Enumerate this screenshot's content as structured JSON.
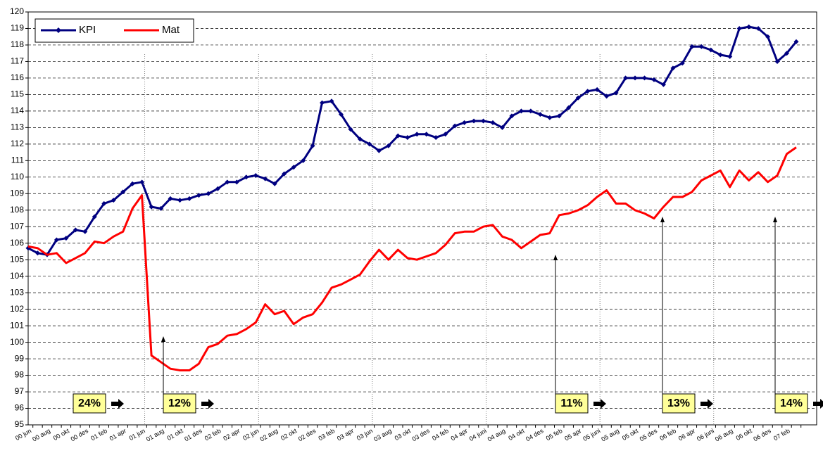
{
  "chart_data": {
    "type": "line",
    "categories": [
      "00 jun",
      null,
      "00 aug",
      null,
      "00 okt",
      null,
      "00 des",
      null,
      "01 feb",
      null,
      "01 apr",
      null,
      "01 jun",
      null,
      "01 aug",
      null,
      "01 okt",
      null,
      "01 des",
      null,
      "02 feb",
      null,
      "02 apr",
      null,
      "02 jun",
      null,
      "02 aug",
      null,
      "02 okt",
      null,
      "02 des",
      null,
      "03 feb",
      null,
      "03 apr",
      null,
      "03 jun",
      null,
      "03 aug",
      null,
      "03 okt",
      null,
      "03 des",
      null,
      "04 feb",
      null,
      "04 apr",
      null,
      "04 juni",
      null,
      "04 aug",
      null,
      "04 okt",
      null,
      "04 des",
      null,
      "05 feb",
      null,
      "05 apr",
      null,
      "05 juni",
      null,
      "05 aug",
      null,
      "05 okt",
      null,
      "05 des",
      null,
      "06 feb",
      null,
      "06 apr",
      null,
      "06 juni",
      null,
      "06 aug",
      null,
      "06 okt",
      null,
      "06 des",
      null,
      "07 feb",
      null
    ],
    "series": [
      {
        "name": "KPI",
        "color": "#000080",
        "values": [
          105.7,
          105.4,
          105.3,
          106.2,
          106.3,
          106.8,
          106.7,
          107.6,
          108.4,
          108.6,
          109.1,
          109.6,
          109.7,
          108.2,
          108.1,
          108.7,
          108.6,
          108.7,
          108.9,
          109.0,
          109.3,
          109.7,
          109.7,
          110.0,
          110.1,
          109.9,
          109.6,
          110.2,
          110.6,
          111.0,
          111.9,
          114.5,
          114.6,
          113.8,
          112.9,
          112.3,
          112.0,
          111.6,
          111.9,
          112.5,
          112.4,
          112.6,
          112.6,
          112.4,
          112.6,
          113.1,
          113.3,
          113.4,
          113.4,
          113.3,
          113.0,
          113.7,
          114.0,
          114.0,
          113.8,
          113.6,
          113.7,
          114.2,
          114.8,
          115.2,
          115.3,
          114.9,
          115.1,
          116.0,
          116.0,
          116.0,
          115.9,
          115.6,
          116.6,
          116.9,
          117.9,
          117.9,
          117.7,
          117.4,
          117.3,
          119.0,
          119.1,
          119.0,
          118.5,
          117.0,
          117.5,
          118.2
        ]
      },
      {
        "name": "Mat",
        "color": "#ff0000",
        "values": [
          105.8,
          105.7,
          105.3,
          105.4,
          104.8,
          105.1,
          105.4,
          106.1,
          106.0,
          106.4,
          106.7,
          108.1,
          108.9,
          99.2,
          98.8,
          98.4,
          98.3,
          98.3,
          98.7,
          99.7,
          99.9,
          100.4,
          100.5,
          100.8,
          101.2,
          102.3,
          101.7,
          101.9,
          101.1,
          101.5,
          101.7,
          102.4,
          103.3,
          103.5,
          103.8,
          104.1,
          104.9,
          105.6,
          105.0,
          105.6,
          105.1,
          105.0,
          105.2,
          105.4,
          105.9,
          106.6,
          106.7,
          106.7,
          107.0,
          107.1,
          106.4,
          106.2,
          105.7,
          106.1,
          106.5,
          106.6,
          107.7,
          107.8,
          108.0,
          108.3,
          108.8,
          109.2,
          108.4,
          108.4,
          108.0,
          107.8,
          107.5,
          108.2,
          108.8,
          108.8,
          109.1,
          109.8,
          110.1,
          110.4,
          109.4,
          110.4,
          109.8,
          110.3,
          109.7,
          110.1,
          111.4,
          111.8
        ]
      }
    ],
    "ylim": [
      95,
      120
    ],
    "yticks": [
      95,
      96,
      97,
      98,
      99,
      100,
      101,
      102,
      103,
      104,
      105,
      106,
      107,
      108,
      109,
      110,
      111,
      112,
      113,
      114,
      115,
      116,
      117,
      118,
      119,
      120
    ],
    "grid": true,
    "legend": "top-left",
    "annotations": [
      "24%",
      "12%",
      "11%",
      "13%",
      "14%"
    ]
  }
}
